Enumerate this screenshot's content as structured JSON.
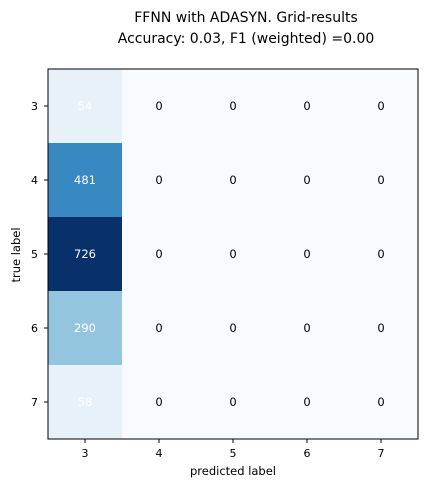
{
  "chart_data": {
    "type": "heatmap",
    "title": "FFNN with ADASYN. Grid-results",
    "subtitle": "Accuracy: 0.03, F1 (weighted) =0.00",
    "xlabel": "predicted label",
    "ylabel": "true label",
    "x_categories": [
      "3",
      "4",
      "5",
      "6",
      "7"
    ],
    "y_categories": [
      "3",
      "4",
      "5",
      "6",
      "7"
    ],
    "values": [
      [
        54,
        0,
        0,
        0,
        0
      ],
      [
        481,
        0,
        0,
        0,
        0
      ],
      [
        726,
        0,
        0,
        0,
        0
      ],
      [
        290,
        0,
        0,
        0,
        0
      ],
      [
        58,
        0,
        0,
        0,
        0
      ]
    ],
    "colormap": "Blues",
    "vmin": 0,
    "vmax": 726,
    "colorbar": false,
    "grid": false
  }
}
